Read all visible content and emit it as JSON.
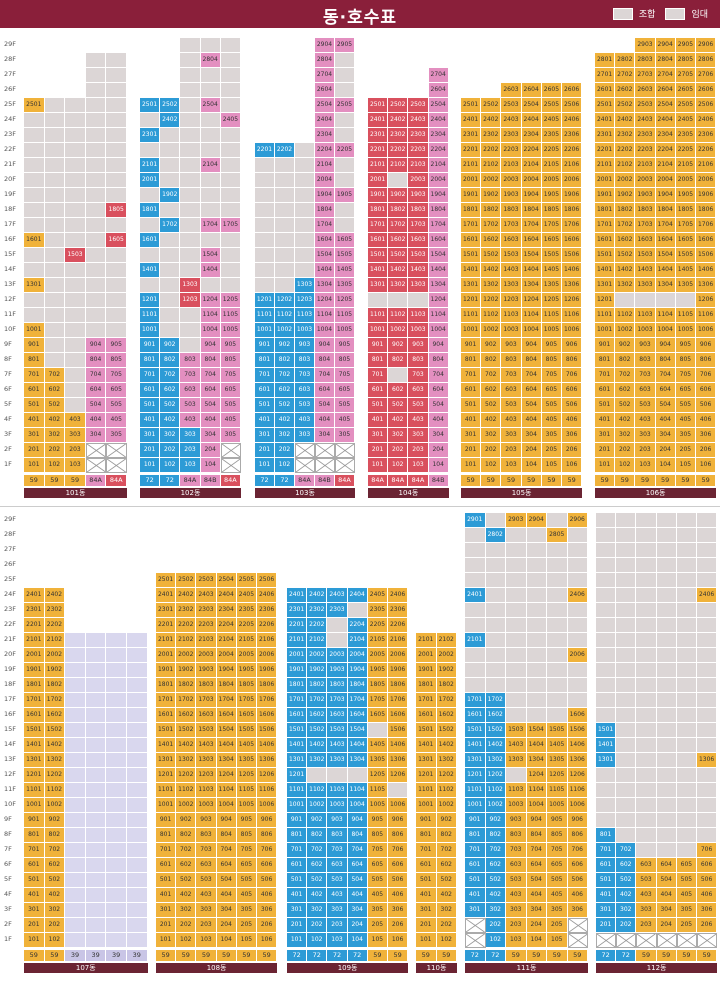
{
  "header": {
    "title": "동·호수표",
    "legend": [
      {
        "label": "조합",
        "color": "#dcd6d6"
      },
      {
        "label": "임대",
        "color": "#dcd6d6"
      }
    ]
  },
  "floor_labels": [
    "29F",
    "28F",
    "27F",
    "26F",
    "25F",
    "24F",
    "23F",
    "22F",
    "21F",
    "20F",
    "19F",
    "18F",
    "17F",
    "16F",
    "15F",
    "14F",
    "13F",
    "12F",
    "11F",
    "10F",
    "9F",
    "8F",
    "7F",
    "6F",
    "5F",
    "4F",
    "3F",
    "2F",
    "1F"
  ],
  "colors": {
    "yellow": "#f0b23a",
    "gray": "#dcd6d6",
    "blue": "#2d9bd6",
    "pink": "#e38fc0",
    "red": "#d9505e",
    "lavender": "#d9d7ee",
    "header": "#8a1f3a",
    "dong_bar": "#6b2433"
  },
  "buildings": [
    {
      "name": "101동",
      "types": [
        "59",
        "59",
        "59",
        "84A",
        "84A"
      ],
      "type_colors": [
        "yel",
        "yel",
        "yel",
        "pnk",
        "red"
      ],
      "max_floor": 27,
      "rows": {
        "1": [
          "Y",
          "Y",
          "Y",
          "X",
          "X"
        ],
        "2": [
          "Y",
          "Y",
          "Y",
          "X",
          "X"
        ],
        "3": [
          "Y",
          "Y",
          "Y",
          "P",
          "P"
        ],
        "4": [
          "Y",
          "Y",
          "Y",
          "P",
          "P"
        ],
        "5": [
          "Y",
          "Y",
          "Y",
          "P",
          "P"
        ],
        "6": [
          "Y",
          "Y",
          "G",
          "P",
          "P"
        ],
        "7": [
          "Y",
          "Y",
          "G",
          "P",
          "P"
        ],
        "8": [
          "Y",
          "G",
          "G",
          "P",
          "P"
        ],
        "9": [
          "Y",
          "G",
          "G",
          "P",
          "P"
        ],
        "10": [
          "Y",
          "G",
          "G",
          "G",
          "G"
        ],
        "16": [
          "Y",
          "G",
          "G",
          "G",
          "R"
        ],
        "13": [
          "Y",
          "G",
          "G",
          "G",
          "G"
        ],
        "14": [
          "G",
          "G",
          "R",
          "G",
          "G"
        ],
        "18": [
          "G",
          "G",
          "G",
          "G",
          "R"
        ],
        "25": [
          "Y",
          "G",
          "G",
          "G",
          "G"
        ]
      }
    },
    {
      "name": "102동",
      "types": [
        "72",
        "72",
        "84A",
        "84B",
        "84A"
      ],
      "type_colors": [
        "blu",
        "blu",
        "pnk",
        "pnk",
        "red"
      ]
    },
    {
      "name": "103동",
      "types": [
        "72",
        "72",
        "84A",
        "84B",
        "84A"
      ],
      "type_colors": [
        "blu",
        "blu",
        "pnk",
        "pnk",
        "red"
      ]
    },
    {
      "name": "104동",
      "types": [
        "84A",
        "84A",
        "84A",
        "84B"
      ],
      "type_colors": [
        "red",
        "red",
        "red",
        "pnk"
      ]
    },
    {
      "name": "105동",
      "types": [
        "59",
        "59",
        "59",
        "59",
        "59",
        "59"
      ],
      "type_colors": [
        "yel",
        "yel",
        "yel",
        "yel",
        "yel",
        "yel"
      ]
    },
    {
      "name": "106동",
      "types": [
        "59",
        "59",
        "59",
        "59",
        "59",
        "59"
      ],
      "type_colors": [
        "yel",
        "yel",
        "yel",
        "yel",
        "yel",
        "yel"
      ]
    },
    {
      "name": "107동",
      "types": [
        "59",
        "59",
        "39",
        "39",
        "39",
        "39"
      ],
      "type_colors": [
        "yel",
        "yel",
        "lav",
        "lav",
        "lav",
        "lav"
      ]
    },
    {
      "name": "108동",
      "types": [
        "59",
        "59",
        "59",
        "59",
        "59",
        "59"
      ],
      "type_colors": [
        "yel",
        "yel",
        "yel",
        "yel",
        "yel",
        "yel"
      ]
    },
    {
      "name": "109동",
      "types": [
        "72",
        "72",
        "72",
        "72",
        "59",
        "59"
      ],
      "type_colors": [
        "blu",
        "blu",
        "blu",
        "blu",
        "yel",
        "yel"
      ]
    },
    {
      "name": "110동",
      "types": [
        "59",
        "59"
      ],
      "type_colors": [
        "yel",
        "yel"
      ]
    },
    {
      "name": "111동",
      "types": [
        "72",
        "72",
        "59",
        "59",
        "59",
        "59"
      ],
      "type_colors": [
        "blu",
        "blu",
        "yel",
        "yel",
        "yel",
        "yel"
      ]
    },
    {
      "name": "112동",
      "types": [
        "72",
        "72",
        "59",
        "59",
        "59",
        "59"
      ],
      "type_colors": [
        "blu",
        "blu",
        "yel",
        "yel",
        "yel",
        "yel"
      ]
    }
  ]
}
